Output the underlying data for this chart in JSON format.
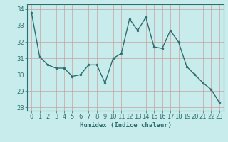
{
  "x": [
    0,
    1,
    2,
    3,
    4,
    5,
    6,
    7,
    8,
    9,
    10,
    11,
    12,
    13,
    14,
    15,
    16,
    17,
    18,
    19,
    20,
    21,
    22,
    23
  ],
  "y": [
    33.8,
    31.1,
    30.6,
    30.4,
    30.4,
    29.9,
    30.0,
    30.6,
    30.6,
    29.5,
    31.0,
    31.3,
    33.4,
    32.7,
    33.5,
    31.7,
    31.6,
    32.7,
    32.0,
    30.5,
    30.0,
    29.5,
    29.1,
    28.3
  ],
  "line_color": "#2d6e6e",
  "marker": "o",
  "markersize": 2,
  "linewidth": 1.0,
  "bg_color": "#c8ecec",
  "grid_color": "#b0b0b0",
  "xlabel": "Humidex (Indice chaleur)",
  "ylim": [
    27.8,
    34.3
  ],
  "xlim": [
    -0.5,
    23.5
  ],
  "yticks": [
    28,
    29,
    30,
    31,
    32,
    33,
    34
  ],
  "xticks": [
    0,
    1,
    2,
    3,
    4,
    5,
    6,
    7,
    8,
    9,
    10,
    11,
    12,
    13,
    14,
    15,
    16,
    17,
    18,
    19,
    20,
    21,
    22,
    23
  ],
  "xlabel_fontsize": 6.5,
  "tick_fontsize": 6,
  "axis_color": "#2d6e6e",
  "spine_color": "#2d6e6e"
}
